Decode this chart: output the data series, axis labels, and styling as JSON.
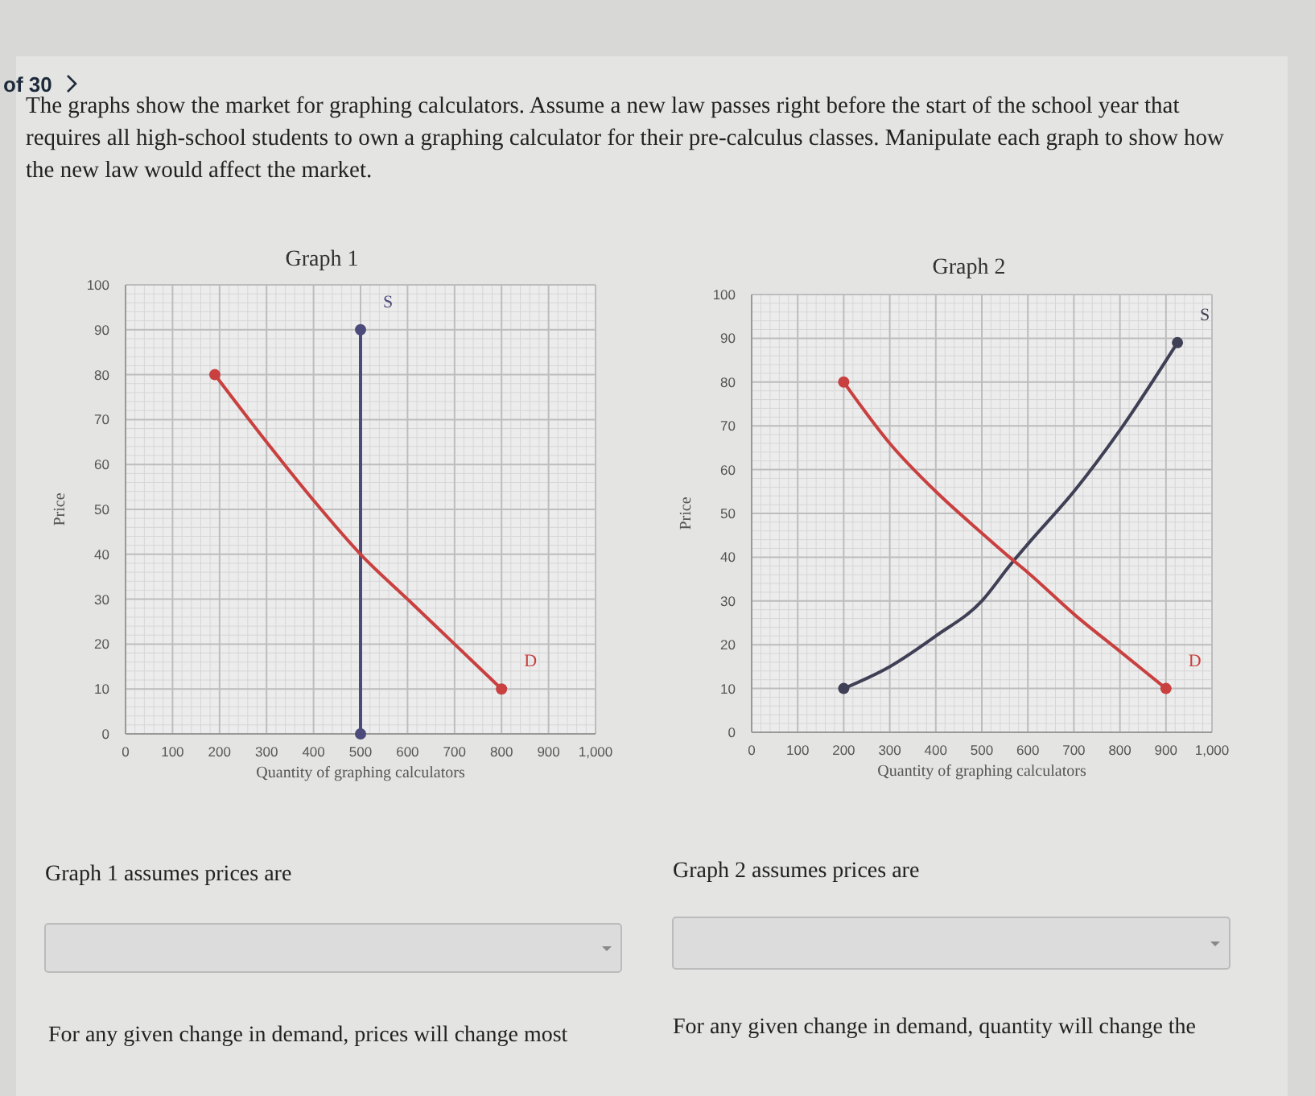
{
  "chart_data": [
    {
      "type": "line",
      "title": "Graph 1",
      "xlabel": "Quantity of graphing calculators",
      "ylabel": "Price",
      "xlim": [
        0,
        1000
      ],
      "xticks": [
        0,
        100,
        200,
        300,
        400,
        500,
        600,
        700,
        800,
        900,
        {
          "value": 1000,
          "label": "1,000"
        }
      ],
      "ylim": [
        0,
        100
      ],
      "yticks": [
        0,
        10,
        20,
        30,
        40,
        50,
        60,
        70,
        80,
        90,
        100
      ],
      "grid": true,
      "annotations": [
        "of 30",
        "The graphs show the market for graphing calculators. Assume a new law passes right before the start of the school year that requires all high-school students to own a graphing calculator for their pre-calculus classes. Manipulate each graph to show how the new law would affect the market.",
        "Graph 1 assumes prices are",
        "For any given change in demand, prices will change most"
      ],
      "series": [
        {
          "name": "S",
          "color": "#4b4a7a",
          "x": [
            500,
            500
          ],
          "values": [
            0,
            90
          ]
        },
        {
          "name": "D",
          "color": "#c8403f",
          "x": [
            190,
            300,
            400,
            500,
            600,
            700,
            800
          ],
          "values": [
            80,
            65,
            52,
            40,
            30,
            20,
            10
          ]
        },
        {
          "type": "scatter",
          "marker": "circle",
          "color": "#4b4a7a",
          "x": [
            500,
            500
          ],
          "values": [
            0,
            90
          ]
        },
        {
          "type": "scatter",
          "marker": "circle",
          "color": "#c8403f",
          "x": [
            190,
            800
          ],
          "values": [
            80,
            10
          ]
        }
      ]
    },
    {
      "type": "line",
      "title": "Graph 2",
      "xlabel": "Quantity of graphing calculators",
      "ylabel": "Price",
      "xlim": [
        0,
        1000
      ],
      "xticks": [
        0,
        100,
        200,
        300,
        400,
        500,
        600,
        700,
        800,
        900,
        {
          "value": 1000,
          "label": "1,000"
        }
      ],
      "ylim": [
        0,
        100
      ],
      "yticks": [
        0,
        10,
        20,
        30,
        40,
        50,
        60,
        70,
        80,
        90,
        100
      ],
      "grid": true,
      "annotations": [
        "Graph 2 assumes prices are",
        "For any given change in demand, quantity will change the"
      ],
      "series": [
        {
          "name": "S",
          "color": "#3f3f55",
          "x": [
            200,
            300,
            400,
            500,
            560,
            600,
            700,
            800,
            925
          ],
          "values": [
            10,
            15,
            22,
            30,
            38,
            43,
            55,
            69,
            89
          ]
        },
        {
          "name": "D",
          "color": "#c8403f",
          "x": [
            200,
            300,
            400,
            500,
            560,
            600,
            700,
            800,
            900
          ],
          "values": [
            80,
            66,
            55,
            45.5,
            40,
            36.5,
            27,
            18.5,
            10
          ]
        },
        {
          "type": "scatter",
          "marker": "circle",
          "color": "#3f3f55",
          "x": [
            200,
            925
          ],
          "values": [
            10,
            89
          ]
        },
        {
          "type": "scatter",
          "marker": "circle",
          "color": "#c8403f",
          "x": [
            200,
            900
          ],
          "values": [
            80,
            10
          ]
        }
      ]
    }
  ]
}
